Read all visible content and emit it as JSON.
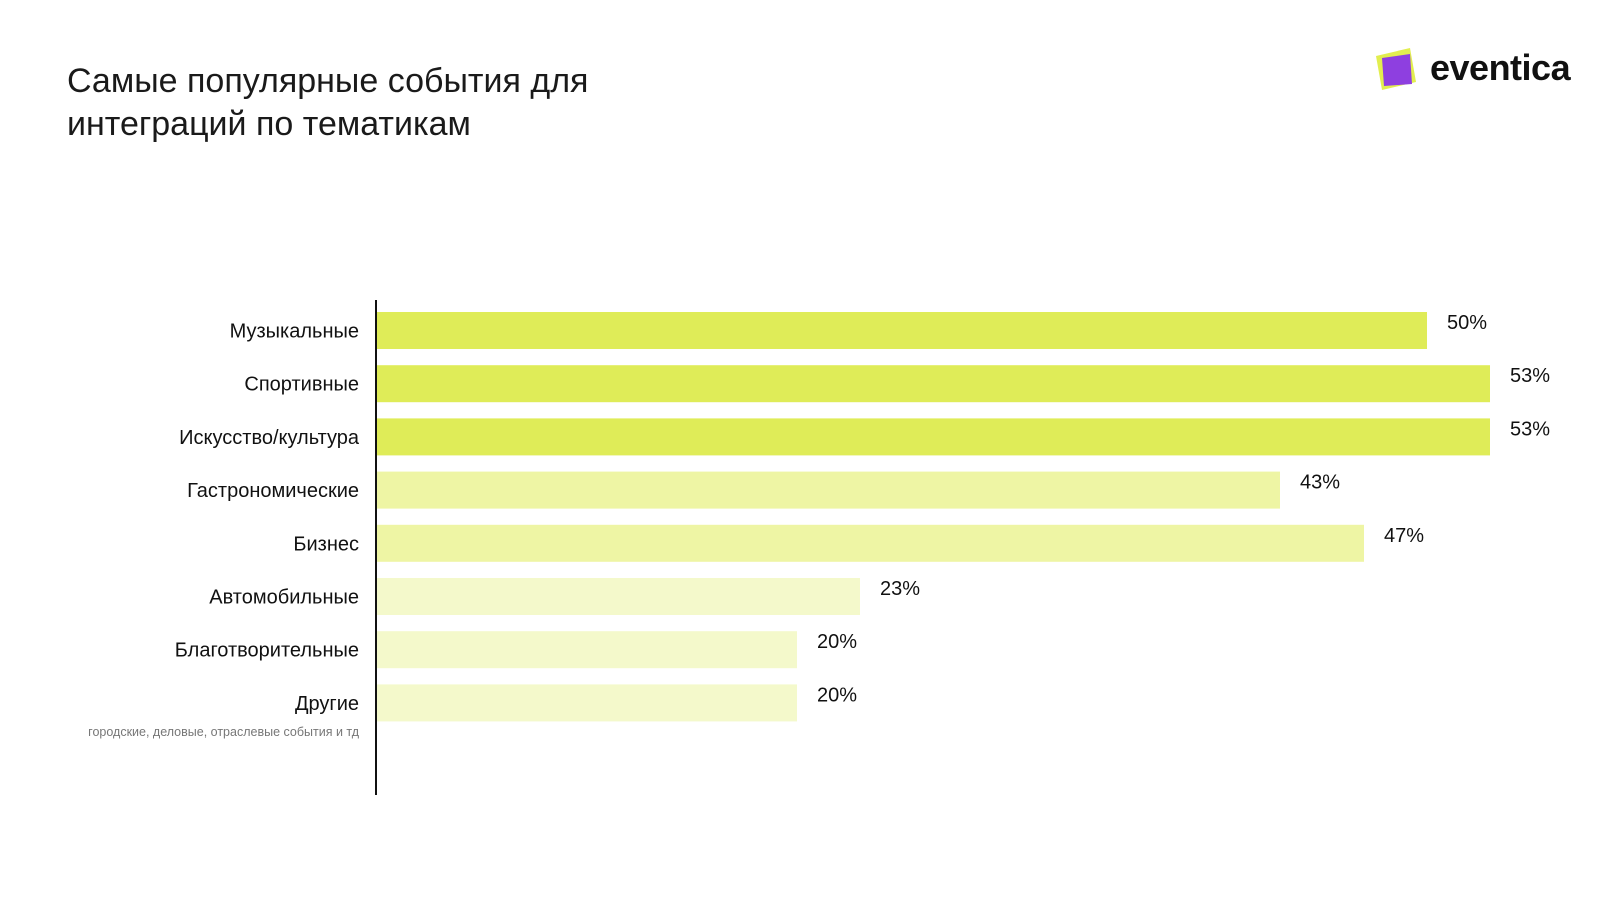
{
  "header": {
    "title_line1": "Самые популярные события для",
    "title_line2": "интеграций по тематикам"
  },
  "brand": {
    "name": "eventica",
    "icon": "eventica-logo-icon",
    "colors": {
      "back": "#e2ee4f",
      "front": "#8e3fe0"
    }
  },
  "chart_data": {
    "type": "bar",
    "orientation": "horizontal",
    "categories": [
      "Музыкальные",
      "Спортивные",
      "Искусство/культура",
      "Гастрономические",
      "Бизнес",
      "Автомобильные",
      "Благотворительные",
      "Другие"
    ],
    "values": [
      50,
      53,
      53,
      43,
      47,
      23,
      20,
      20
    ],
    "value_labels": [
      "50%",
      "53%",
      "53%",
      "43%",
      "47%",
      "23%",
      "20%",
      "20%"
    ],
    "note": "городские, деловые, отраслевые события и тд",
    "xlim": [
      0,
      55
    ],
    "grid": false,
    "legend": "none",
    "bar_colors": [
      "#dfec58",
      "#dfec58",
      "#dfec58",
      "#eef5a4",
      "#eef5a4",
      "#f4f9cb",
      "#f4f9cb",
      "#f4f9cb"
    ]
  }
}
